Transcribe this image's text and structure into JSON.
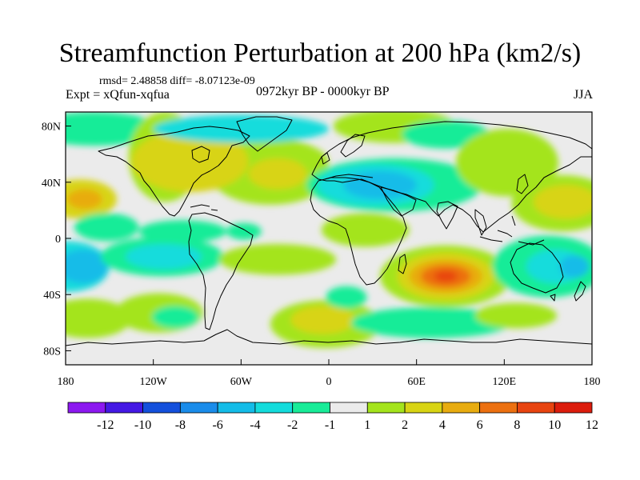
{
  "title": "Streamfunction Perturbation at 200 hPa (km2/s)",
  "stats": "rmsd= 2.48858 diff= -8.07123e-09",
  "experiment": "Expt = xQfun-xqfua",
  "period": "0972kyr BP - 0000kyr BP",
  "season": "JJA",
  "map": {
    "projection": "cylindrical equidistant",
    "lon_range": [
      -180,
      180
    ],
    "lat_range": [
      -90,
      90
    ],
    "lon_ticks": [
      {
        "value": -180,
        "label": "180"
      },
      {
        "value": -120,
        "label": "120W"
      },
      {
        "value": -60,
        "label": "60W"
      },
      {
        "value": 0,
        "label": "0"
      },
      {
        "value": 60,
        "label": "60E"
      },
      {
        "value": 120,
        "label": "120E"
      },
      {
        "value": 180,
        "label": "180"
      }
    ],
    "lat_ticks": [
      {
        "value": 80,
        "label": "80N"
      },
      {
        "value": 40,
        "label": "40N"
      },
      {
        "value": 0,
        "label": "0"
      },
      {
        "value": -40,
        "label": "40S"
      },
      {
        "value": -80,
        "label": "80S"
      }
    ],
    "background_color": "#ebebeb",
    "features": [
      {
        "lon": -170,
        "lat": 28,
        "rx": 25,
        "ry": 14,
        "level": 4
      },
      {
        "lon": -167,
        "lat": 28,
        "rx": 12,
        "ry": 7,
        "level": 6
      },
      {
        "lon": -160,
        "lat": 78,
        "rx": 45,
        "ry": 12,
        "level": -1
      },
      {
        "lon": -112,
        "lat": 58,
        "rx": 25,
        "ry": 32,
        "level": 2
      },
      {
        "lon": -60,
        "lat": 54,
        "rx": 60,
        "ry": 20,
        "level": 2
      },
      {
        "lon": -40,
        "lat": 44,
        "rx": 40,
        "ry": 20,
        "level": 2
      },
      {
        "lon": -95,
        "lat": 55,
        "rx": 40,
        "ry": 22,
        "level": 4
      },
      {
        "lon": -35,
        "lat": 46,
        "rx": 20,
        "ry": 11,
        "level": 4
      },
      {
        "lon": -100,
        "lat": 5,
        "rx": 30,
        "ry": 8,
        "level": -1
      },
      {
        "lon": -58,
        "lat": 5,
        "rx": 12,
        "ry": 6,
        "level": -1
      },
      {
        "lon": -152,
        "lat": 8,
        "rx": 22,
        "ry": 10,
        "level": -1
      },
      {
        "lon": -178,
        "lat": -20,
        "rx": 28,
        "ry": 18,
        "level": -2
      },
      {
        "lon": -168,
        "lat": -20,
        "rx": 17,
        "ry": 12,
        "level": -4
      },
      {
        "lon": -114,
        "lat": -13,
        "rx": 42,
        "ry": 14,
        "level": -1
      },
      {
        "lon": -113,
        "lat": -13,
        "rx": 26,
        "ry": 9,
        "level": -2
      },
      {
        "lon": -165,
        "lat": -57,
        "rx": 30,
        "ry": 14,
        "level": 2
      },
      {
        "lon": -116,
        "lat": -53,
        "rx": 30,
        "ry": 14,
        "level": 2
      },
      {
        "lon": -105,
        "lat": -56,
        "rx": 16,
        "ry": 8,
        "level": -1
      },
      {
        "lon": -2,
        "lat": -61,
        "rx": 38,
        "ry": 17,
        "level": 2
      },
      {
        "lon": -4,
        "lat": -58,
        "rx": 22,
        "ry": 10,
        "level": 4
      },
      {
        "lon": 12,
        "lat": -42,
        "rx": 14,
        "ry": 8,
        "level": -1
      },
      {
        "lon": -60,
        "lat": 78,
        "rx": 60,
        "ry": 10,
        "level": -2
      },
      {
        "lon": 25,
        "lat": 6,
        "rx": 30,
        "ry": 12,
        "level": 2
      },
      {
        "lon": -35,
        "lat": -15,
        "rx": 40,
        "ry": 11,
        "level": 2
      },
      {
        "lon": 45,
        "lat": 38,
        "rx": 60,
        "ry": 19,
        "level": -1
      },
      {
        "lon": 32,
        "lat": 38,
        "rx": 40,
        "ry": 15,
        "level": -2
      },
      {
        "lon": 35,
        "lat": 38,
        "rx": 25,
        "ry": 10,
        "level": -4
      },
      {
        "lon": 45,
        "lat": 80,
        "rx": 42,
        "ry": 12,
        "level": 2
      },
      {
        "lon": 80,
        "lat": 74,
        "rx": 30,
        "ry": 10,
        "level": -1
      },
      {
        "lon": 122,
        "lat": 54,
        "rx": 35,
        "ry": 24,
        "level": 2
      },
      {
        "lon": 160,
        "lat": 25,
        "rx": 35,
        "ry": 20,
        "level": 2
      },
      {
        "lon": 162,
        "lat": 26,
        "rx": 22,
        "ry": 12,
        "level": 4
      },
      {
        "lon": 80,
        "lat": -27,
        "rx": 45,
        "ry": 22,
        "level": 2
      },
      {
        "lon": 80,
        "lat": -27,
        "rx": 33,
        "ry": 17,
        "level": 4
      },
      {
        "lon": 80,
        "lat": -27,
        "rx": 25,
        "ry": 12,
        "level": 6
      },
      {
        "lon": 80,
        "lat": -27,
        "rx": 17,
        "ry": 8,
        "level": 8
      },
      {
        "lon": 80,
        "lat": -27,
        "rx": 8,
        "ry": 4,
        "level": 10
      },
      {
        "lon": 150,
        "lat": -20,
        "rx": 38,
        "ry": 22,
        "level": -1
      },
      {
        "lon": 155,
        "lat": -20,
        "rx": 20,
        "ry": 12,
        "level": -2
      },
      {
        "lon": 168,
        "lat": -20,
        "rx": 10,
        "ry": 8,
        "level": -4
      },
      {
        "lon": 70,
        "lat": -60,
        "rx": 55,
        "ry": 11,
        "level": -1
      },
      {
        "lon": 128,
        "lat": -55,
        "rx": 28,
        "ry": 9,
        "level": 2
      }
    ]
  },
  "colorbar": {
    "levels": [
      "-12",
      "-10",
      "-8",
      "-6",
      "-4",
      "-2",
      "-1",
      "1",
      "2",
      "4",
      "6",
      "8",
      "10",
      "12"
    ],
    "colors": [
      "#8c18f0",
      "#4418e4",
      "#1450dc",
      "#1a8cea",
      "#14bce8",
      "#14dcdc",
      "#18ec98",
      "#ebebeb",
      "#a4e41c",
      "#d8d414",
      "#e8ac10",
      "#ec7010",
      "#e84410",
      "#dc1c0c"
    ],
    "value_color_map": {
      "-12": "#4418e4",
      "-10": "#1450dc",
      "-8": "#1a8cea",
      "-6": "#14bce8",
      "-4": "#14bce8",
      "-2": "#14dcdc",
      "-1": "#18ec98",
      "2": "#a4e41c",
      "4": "#d8d414",
      "6": "#e8ac10",
      "8": "#ec7010",
      "10": "#e84410",
      "12": "#dc1c0c"
    }
  }
}
